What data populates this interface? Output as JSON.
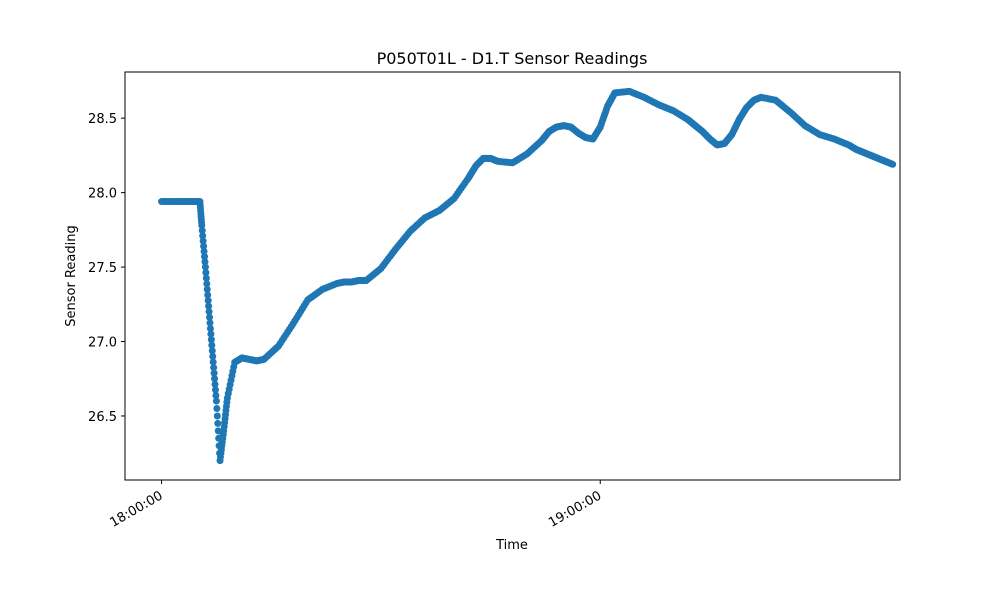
{
  "chart_data": {
    "type": "scatter",
    "title": "P050T01L - D1.T Sensor Readings",
    "xlabel": "Time",
    "ylabel": "Sensor Reading",
    "x_unit": "time of day (HH:MM:SS)",
    "xlim": [
      "17:55:00",
      "19:41:00"
    ],
    "ylim": [
      26.07,
      28.81
    ],
    "xticks": [
      "18:00:00",
      "19:00:00"
    ],
    "yticks": [
      "26.5",
      "27.0",
      "27.5",
      "28.0",
      "28.5"
    ],
    "ytick_values": [
      26.5,
      27.0,
      27.5,
      28.0,
      28.5
    ],
    "grid": false,
    "legend": false,
    "marker_color": "#1f77b4",
    "series": [
      {
        "x": [
          "18:00:00",
          "18:02:00",
          "18:04:00",
          "18:05:15",
          "18:05:30",
          "18:06:00",
          "18:06:30",
          "18:07:00",
          "18:07:30",
          "18:08:00",
          "18:08:30",
          "18:09:00",
          "18:10:00",
          "18:11:00",
          "18:12:00",
          "18:13:00",
          "18:14:00",
          "18:16:00",
          "18:18:00",
          "18:20:00",
          "18:22:00",
          "18:24:00",
          "18:25:00",
          "18:26:00",
          "18:27:00",
          "18:28:00",
          "18:30:00",
          "18:32:00",
          "18:34:00",
          "18:36:00",
          "18:38:00",
          "18:40:00",
          "18:42:00",
          "18:43:00",
          "18:44:00",
          "18:45:00",
          "18:46:00",
          "18:48:00",
          "18:50:00",
          "18:52:00",
          "18:53:00",
          "18:54:00",
          "18:55:00",
          "18:56:00",
          "18:57:00",
          "18:58:00",
          "18:59:00",
          "19:00:00",
          "19:01:00",
          "19:02:00",
          "19:04:00",
          "19:06:00",
          "19:08:00",
          "19:10:00",
          "19:12:00",
          "19:13:00",
          "19:14:00",
          "19:15:00",
          "19:16:00",
          "19:17:00",
          "19:18:00",
          "19:19:00",
          "19:20:00",
          "19:21:00",
          "19:22:00",
          "19:24:00",
          "19:26:00",
          "19:28:00",
          "19:30:00",
          "19:32:00",
          "19:34:00",
          "19:35:00",
          "19:36:00",
          "19:37:00",
          "19:38:00",
          "19:39:00",
          "19:40:00"
        ],
        "y": [
          27.94,
          27.94,
          27.94,
          27.94,
          27.78,
          27.5,
          27.2,
          26.9,
          26.6,
          26.2,
          26.4,
          26.62,
          26.86,
          26.89,
          26.88,
          26.87,
          26.88,
          26.97,
          27.12,
          27.28,
          27.35,
          27.39,
          27.4,
          27.4,
          27.41,
          27.41,
          27.49,
          27.62,
          27.74,
          27.83,
          27.88,
          27.96,
          28.1,
          28.18,
          28.23,
          28.23,
          28.21,
          28.2,
          28.26,
          28.35,
          28.41,
          28.44,
          28.45,
          28.44,
          28.4,
          28.37,
          28.36,
          28.44,
          28.58,
          28.67,
          28.68,
          28.64,
          28.59,
          28.55,
          28.49,
          28.45,
          28.41,
          28.36,
          28.32,
          28.33,
          28.39,
          28.49,
          28.57,
          28.62,
          28.64,
          28.62,
          28.54,
          28.45,
          28.39,
          28.36,
          28.32,
          28.29,
          28.27,
          28.25,
          28.23,
          28.21,
          28.19
        ]
      }
    ]
  }
}
